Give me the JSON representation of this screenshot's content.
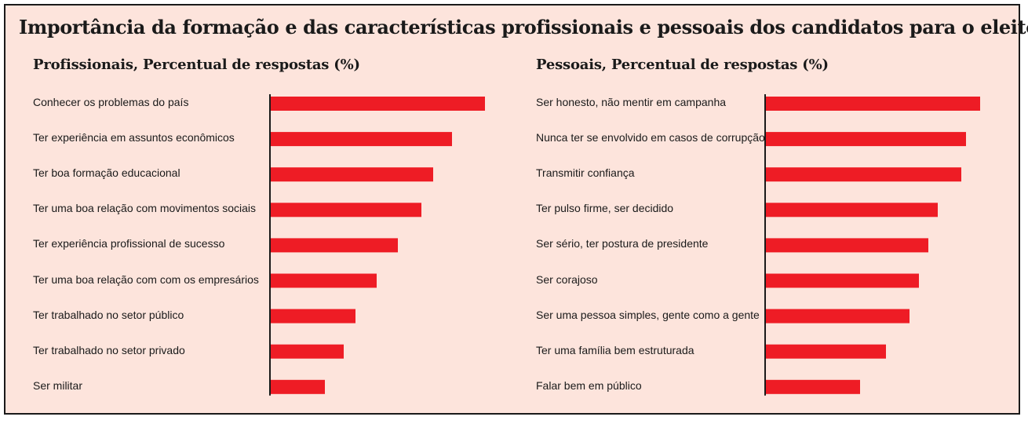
{
  "title": "Importância da formação e das características profissionais e pessoais dos candidatos para o eleitor",
  "colors": {
    "background": "#fde4dc",
    "bar": "#ee1c25",
    "axis": "#1a1a1a",
    "text": "#1a1a1a"
  },
  "chart_data": [
    {
      "type": "bar",
      "orientation": "horizontal",
      "title": "Profissionais, Percentual de respostas (%)",
      "categories": [
        "Conhecer os problemas do país",
        "Ter experiência em assuntos econômicos",
        "Ter boa formação educacional",
        "Ter uma boa relação com movimentos sociais",
        "Ter experiência profissional de sucesso",
        "Ter uma boa relação com com os empresários",
        "Ter trabalhado no setor público",
        "Ter trabalhado no setor privado",
        "Ser militar"
      ],
      "values": [
        91,
        77,
        69,
        64,
        54,
        45,
        36,
        31,
        23
      ],
      "xlim": [
        0,
        100
      ],
      "grid": false,
      "legend": false
    },
    {
      "type": "bar",
      "orientation": "horizontal",
      "title": "Pessoais, Percentual de respostas (%)",
      "categories": [
        "Ser honesto, não mentir em campanha",
        "Nunca ter se envolvido em casos de corrupção",
        "Transmitir confiança",
        "Ter pulso firme, ser decidido",
        "Ser sério, ter postura de presidente",
        "Ser corajoso",
        "Ser uma pessoa simples, gente como a gente",
        "Ter uma família bem estruturada",
        "Falar bem em público"
      ],
      "values": [
        91,
        85,
        83,
        73,
        69,
        65,
        61,
        51,
        40
      ],
      "xlim": [
        0,
        100
      ],
      "grid": false,
      "legend": false
    }
  ]
}
